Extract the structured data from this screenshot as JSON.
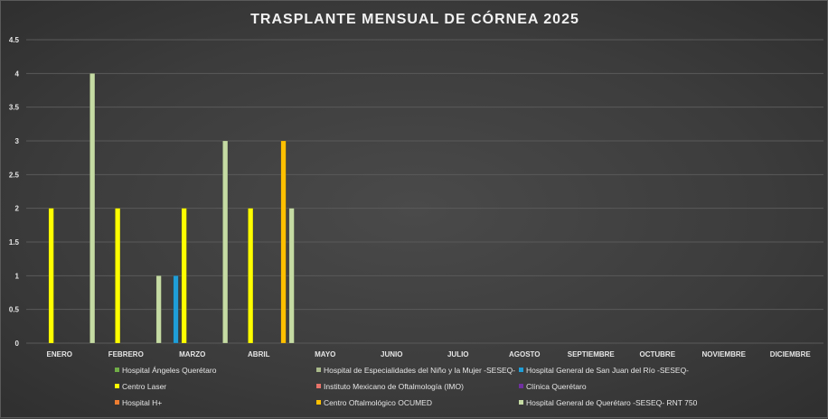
{
  "chart_data": {
    "type": "bar",
    "title": "TRASPLANTE MENSUAL DE CÓRNEA 2025",
    "categories": [
      "ENERO",
      "FEBRERO",
      "MARZO",
      "ABRIL",
      "MAYO",
      "JUNIO",
      "JULIO",
      "AGOSTO",
      "SEPTIEMBRE",
      "OCTUBRE",
      "NOVIEMBRE",
      "DICIEMBRE"
    ],
    "ylim": [
      0,
      4.5
    ],
    "yticks": [
      "0",
      "0.5",
      "1",
      "1.5",
      "2",
      "2.5",
      "3",
      "3.5",
      "4",
      "4.5"
    ],
    "grid": true,
    "legend_position": "bottom",
    "series": [
      {
        "name": "Hospital Ángeles Querétaro",
        "color": "#70ad47",
        "values": [
          0,
          0,
          0,
          0,
          null,
          null,
          null,
          null,
          null,
          null,
          null,
          null
        ]
      },
      {
        "name": "Hospital de Especialidades del Niño y la Mujer -SESEQ-",
        "color": "#a9b98a",
        "values": [
          0,
          0,
          0,
          0,
          null,
          null,
          null,
          null,
          null,
          null,
          null,
          null
        ]
      },
      {
        "name": "Hospital General de San Juan del Río -SESEQ-",
        "color": "#1f9ed8",
        "values": [
          0,
          0,
          1,
          0,
          null,
          null,
          null,
          null,
          null,
          null,
          null,
          null
        ]
      },
      {
        "name": "Centro Laser",
        "color": "#ffff00",
        "values": [
          2,
          2,
          2,
          2,
          null,
          null,
          null,
          null,
          null,
          null,
          null,
          null
        ]
      },
      {
        "name": "Instituto Mexicano de Oftalmología (IMO)",
        "color": "#e8736a",
        "values": [
          0,
          0,
          0,
          0,
          null,
          null,
          null,
          null,
          null,
          null,
          null,
          null
        ]
      },
      {
        "name": "Clínica Querétaro",
        "color": "#7030a0",
        "values": [
          0,
          0,
          0,
          0,
          null,
          null,
          null,
          null,
          null,
          null,
          null,
          null
        ]
      },
      {
        "name": "Hospital H+",
        "color": "#ed7d31",
        "values": [
          0,
          0,
          0,
          0,
          null,
          null,
          null,
          null,
          null,
          null,
          null,
          null
        ]
      },
      {
        "name": "Centro Oftalmológico OCUMED",
        "color": "#ffc000",
        "values": [
          0,
          0,
          0,
          3,
          null,
          null,
          null,
          null,
          null,
          null,
          null,
          null
        ]
      },
      {
        "name": "Hospital General de Querétaro -SESEQ- RNT 750",
        "color": "#c5dba3",
        "values": [
          4,
          1,
          3,
          2,
          null,
          null,
          null,
          null,
          null,
          null,
          null,
          null
        ]
      }
    ]
  }
}
